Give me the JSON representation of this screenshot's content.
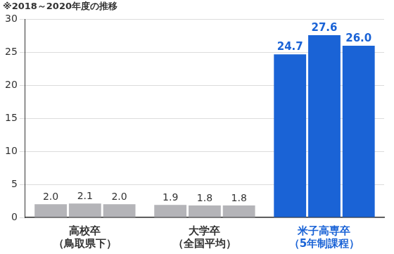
{
  "chart_data": {
    "type": "bar",
    "subtitle": "※2018～2020年度の推移",
    "categories": [
      [
        "高校卒",
        "（鳥取県下）"
      ],
      [
        "大学卒",
        "（全国平均）"
      ],
      [
        "米子高専卒",
        "（5年制課程）"
      ]
    ],
    "series": [
      {
        "values": [
          2.0,
          1.9,
          24.7
        ],
        "value_labels": [
          "2.0",
          "1.9",
          "24.7"
        ],
        "colors": [
          "#b4b4b8",
          "#b4b4b8",
          "#1a63d6"
        ]
      },
      {
        "values": [
          2.1,
          1.8,
          27.6
        ],
        "value_labels": [
          "2.1",
          "1.8",
          "27.6"
        ],
        "colors": [
          "#b4b4b8",
          "#b4b4b8",
          "#1a63d6"
        ]
      },
      {
        "values": [
          2.0,
          1.8,
          26.0
        ],
        "value_labels": [
          "2.0",
          "1.8",
          "26.0"
        ],
        "colors": [
          "#b4b4b8",
          "#b4b4b8",
          "#1a63d6"
        ]
      }
    ],
    "ylim": [
      0,
      30
    ],
    "yticks": [
      0,
      5,
      10,
      15,
      20,
      25,
      30
    ],
    "grid": true,
    "data_labels": true
  }
}
